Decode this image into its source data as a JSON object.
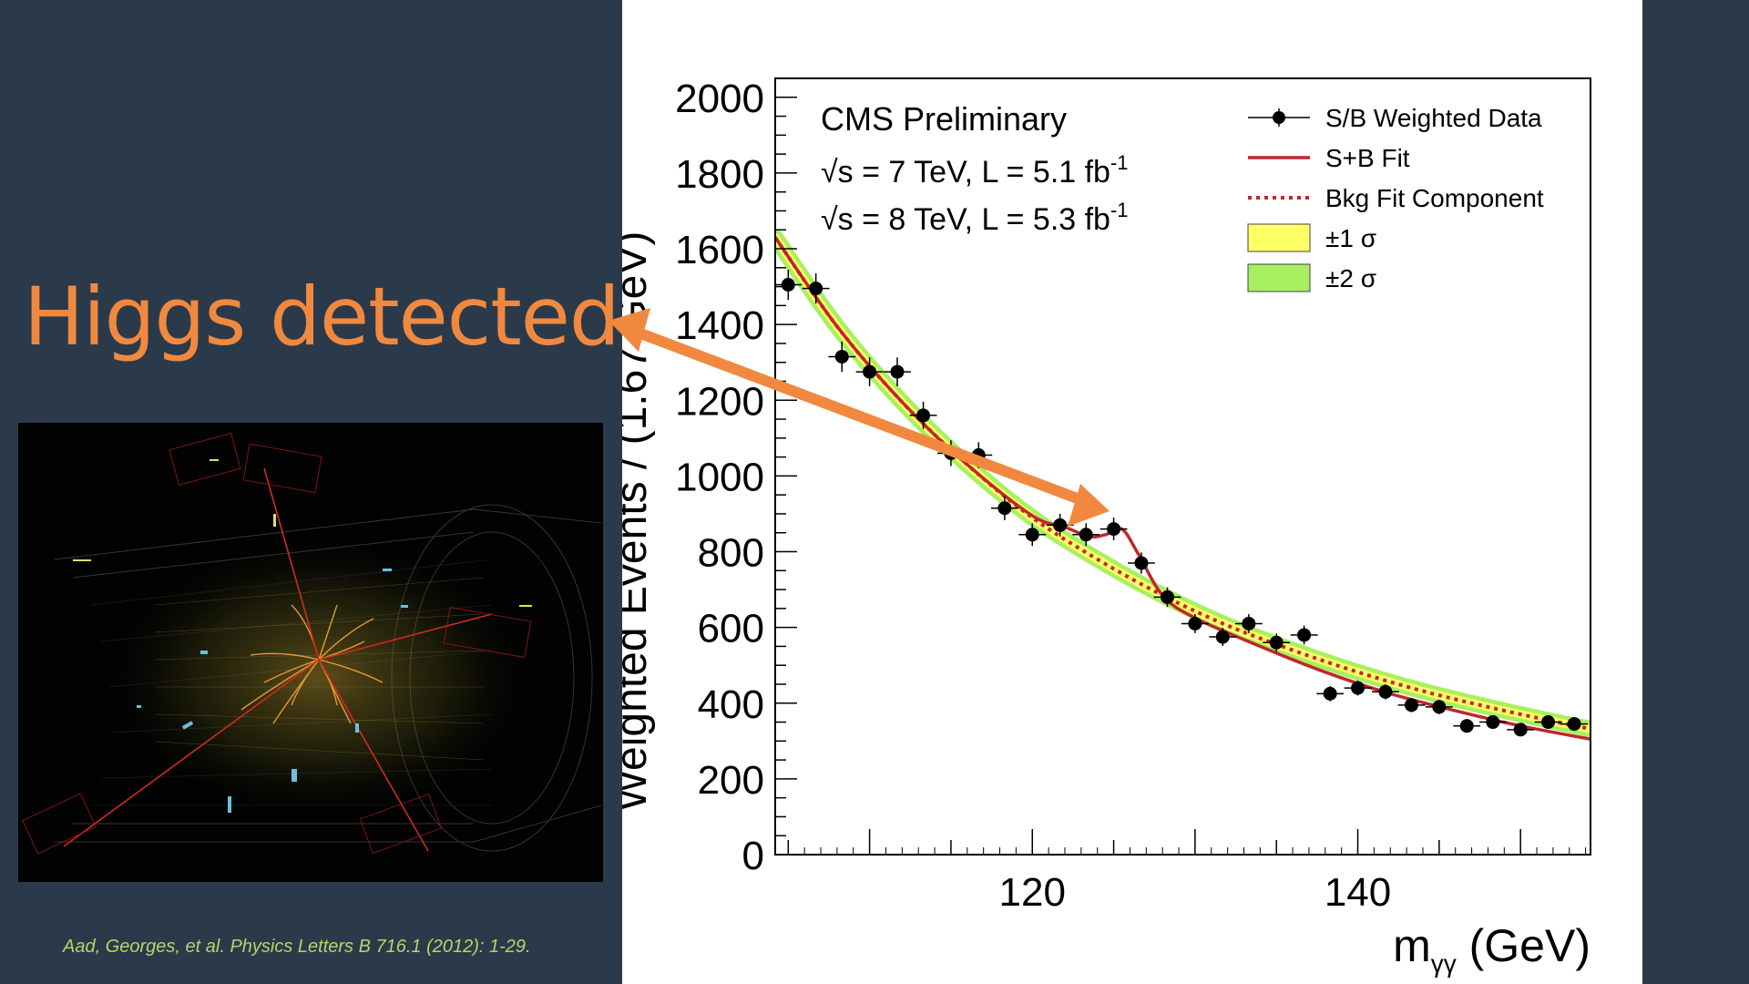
{
  "slide": {
    "headline": "Higgs detected!",
    "citation": "Aad, Georges, et al. Physics Letters B 716.1 (2012): 1-29.",
    "background_color": "#2b3a4a",
    "accent_color": "#f0893f",
    "citation_color": "#b8d468"
  },
  "chart_data": {
    "type": "scatter",
    "title": "CMS Preliminary",
    "annotations": {
      "line1": "√s = 7 TeV, L = 5.1 fb",
      "line2": "√s = 8 TeV, L = 5.3 fb",
      "sup": "-1"
    },
    "xlabel": "m",
    "xlabel_sub": "γγ",
    "xlabel_unit": " (GeV)",
    "ylabel": "Weighted Events / (1.67 GeV)",
    "xlim": [
      104.2,
      154.3
    ],
    "ylim": [
      0,
      2050
    ],
    "xticks": [
      120,
      140
    ],
    "yticks": [
      0,
      200,
      400,
      600,
      800,
      1000,
      1200,
      1400,
      1600,
      1800,
      2000
    ],
    "legend_position": "top-right",
    "legend": [
      {
        "label": "S/B Weighted Data",
        "kind": "data"
      },
      {
        "label": "S+B Fit",
        "kind": "solid",
        "color": "#c0272d"
      },
      {
        "label": "Bkg Fit Component",
        "kind": "dotted",
        "color": "#c0272d"
      },
      {
        "label": "±1 σ",
        "kind": "band",
        "color": "#ffff66"
      },
      {
        "label": "±2 σ",
        "kind": "band",
        "color": "#a8f060"
      }
    ],
    "data_points": {
      "x": [
        105.0,
        106.7,
        108.3,
        110.0,
        111.7,
        113.3,
        115.0,
        116.7,
        118.3,
        120.0,
        121.7,
        123.3,
        125.0,
        126.7,
        128.3,
        130.0,
        131.7,
        133.3,
        135.0,
        136.7,
        138.3,
        140.0,
        141.7,
        143.3,
        145.0,
        146.7,
        148.3,
        150.0,
        151.7,
        153.3
      ],
      "y": [
        1505,
        1495,
        1315,
        1275,
        1275,
        1160,
        1060,
        1055,
        915,
        845,
        870,
        845,
        860,
        770,
        680,
        610,
        575,
        610,
        560,
        580,
        425,
        440,
        430,
        395,
        390,
        340,
        350,
        330,
        350,
        345
      ],
      "yerr": [
        40,
        40,
        40,
        38,
        38,
        36,
        34,
        34,
        32,
        30,
        30,
        30,
        30,
        28,
        26,
        25,
        24,
        25,
        24,
        25,
        20,
        20,
        20,
        19,
        19,
        18,
        18,
        17,
        18,
        18
      ]
    },
    "sb_fit": {
      "x": [
        104.2,
        108,
        112,
        116,
        120,
        122,
        123.5,
        124.5,
        125.5,
        126.5,
        128,
        130,
        134,
        138,
        142,
        146,
        150,
        154.3
      ],
      "y": [
        1630,
        1395,
        1195,
        1030,
        895,
        865,
        840,
        845,
        860,
        795,
        685,
        625,
        550,
        482,
        425,
        380,
        340,
        305
      ]
    },
    "bkg_fit": {
      "x": [
        104.2,
        108,
        112,
        116,
        120,
        124,
        128,
        132,
        136,
        140,
        144,
        148,
        152,
        154.3
      ],
      "y": [
        1630,
        1395,
        1195,
        1030,
        890,
        780,
        685,
        605,
        540,
        482,
        432,
        390,
        352,
        332
      ]
    }
  }
}
